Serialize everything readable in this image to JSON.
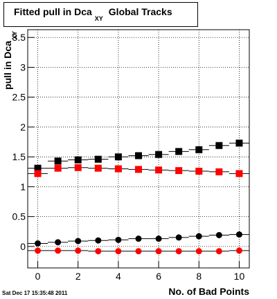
{
  "chart_data": {
    "type": "scatter",
    "title": {
      "text": "Fitted pull in Dca",
      "subscript": "XY",
      "suffix": "Global Tracks"
    },
    "ylabel": {
      "text": "pull in Dca",
      "subscript": "XY"
    },
    "xlabel": "No. of Bad Points",
    "timestamp": "Sat Dec 17 15:35:48 2011",
    "x": [
      0,
      1,
      2,
      3,
      4,
      5,
      6,
      7,
      8,
      9,
      10
    ],
    "xlim": [
      -0.5,
      10.5
    ],
    "xticks": [
      0,
      2,
      4,
      6,
      8,
      10
    ],
    "ylim": [
      -0.36,
      3.63
    ],
    "yticks": [
      0,
      0.5,
      1,
      1.5,
      2,
      2.5,
      3,
      3.5
    ],
    "grid": true,
    "series": [
      {
        "color": "#000000",
        "marker": "square",
        "values": [
          1.31,
          1.43,
          1.45,
          1.46,
          1.5,
          1.52,
          1.54,
          1.59,
          1.62,
          1.69,
          1.73
        ]
      },
      {
        "color": "#ff0000",
        "marker": "square",
        "values": [
          1.22,
          1.31,
          1.32,
          1.31,
          1.3,
          1.29,
          1.28,
          1.27,
          1.26,
          1.25,
          1.22
        ]
      },
      {
        "color": "#000000",
        "marker": "circle",
        "values": [
          0.05,
          0.07,
          0.09,
          0.1,
          0.11,
          0.13,
          0.13,
          0.15,
          0.17,
          0.19,
          0.2
        ]
      },
      {
        "color": "#ff0000",
        "marker": "circle",
        "values": [
          -0.07,
          -0.07,
          -0.07,
          -0.08,
          -0.08,
          -0.08,
          -0.08,
          -0.08,
          -0.08,
          -0.08,
          -0.07
        ]
      }
    ]
  }
}
